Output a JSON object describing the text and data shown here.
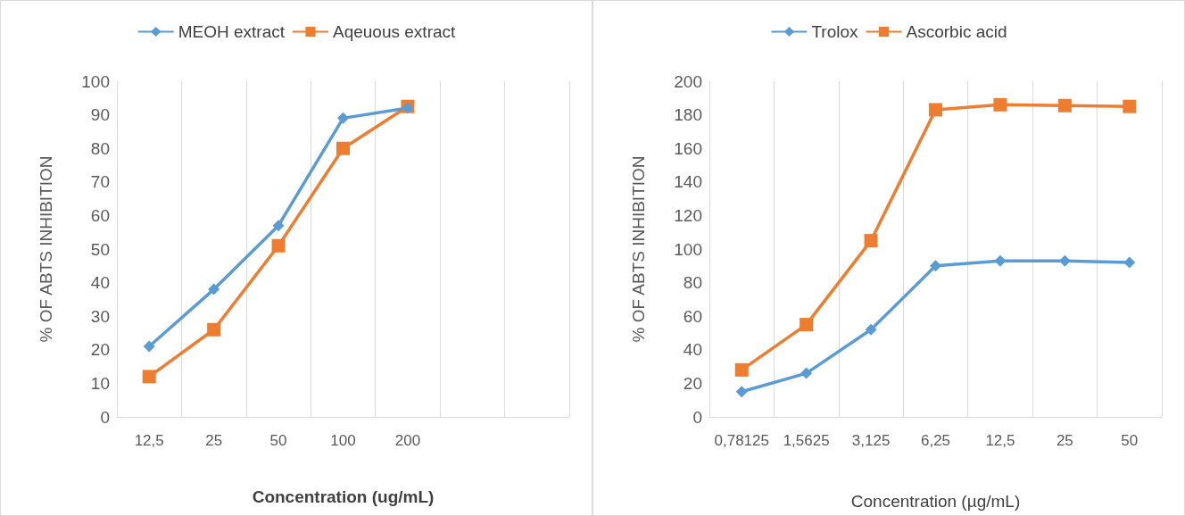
{
  "chart_data": [
    {
      "type": "line",
      "xlabel": "Concentration (ug/mL)",
      "ylabel": "% OF ABTS INHIBITION",
      "categories": [
        "12,5",
        "25",
        "50",
        "100",
        "200",
        null,
        null
      ],
      "series": [
        {
          "name": "MEOH extract",
          "color": "#5b9bd5",
          "marker": "diamond",
          "values": [
            21,
            38,
            57,
            89,
            92,
            null,
            null
          ]
        },
        {
          "name": "Aqeuous extract",
          "color": "#ed7d31",
          "marker": "square",
          "values": [
            12,
            26,
            51,
            80,
            92.5,
            null,
            null
          ]
        }
      ],
      "ylim": [
        0,
        100
      ],
      "yticks": [
        0,
        10,
        20,
        30,
        40,
        50,
        60,
        70,
        80,
        90,
        100
      ],
      "grid": "x",
      "legend": "top"
    },
    {
      "type": "line",
      "xlabel": "Concentration (µg/mL)",
      "ylabel": "% OF ABTS INHIBITION",
      "categories": [
        "0,78125",
        "1,5625",
        "3,125",
        "6,25",
        "12,5",
        "25",
        "50"
      ],
      "series": [
        {
          "name": "Trolox",
          "color": "#5b9bd5",
          "marker": "diamond",
          "values": [
            15,
            26,
            52,
            90,
            93,
            93,
            92
          ]
        },
        {
          "name": "Ascorbic acid",
          "color": "#ed7d31",
          "marker": "square",
          "values": [
            28,
            55,
            105,
            183,
            186,
            185.5,
            185
          ]
        }
      ],
      "ylim": [
        0,
        200
      ],
      "yticks": [
        0,
        20,
        40,
        60,
        80,
        100,
        120,
        140,
        160,
        180,
        200
      ],
      "grid": "x",
      "legend": "top"
    }
  ]
}
